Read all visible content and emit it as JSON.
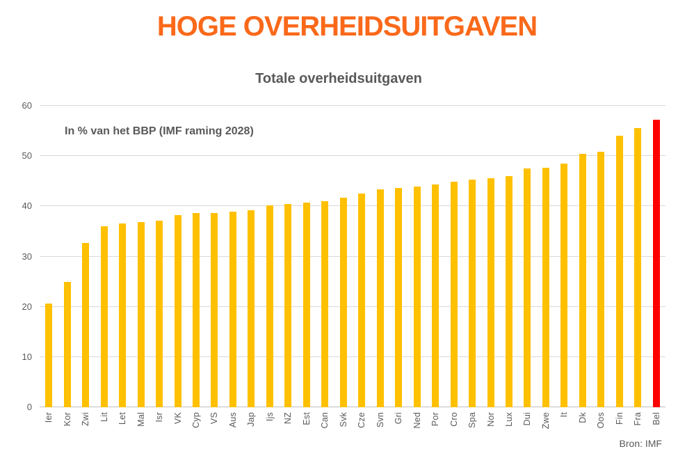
{
  "header": {
    "title": "HOGE OVERHEIDSUITGAVEN"
  },
  "footer": {
    "source": "Bron: IMF"
  },
  "colors": {
    "title": "#fa691a",
    "subtitle": "#595959",
    "axis_text": "#595959",
    "gridline": "#d9d9d9",
    "bar": "#ffc000",
    "highlight": "#ff0000"
  },
  "chart_data": {
    "type": "bar",
    "title": "Totale overheidsuitgaven",
    "annotation": "In % van het BBP (IMF raming 2028)",
    "xlabel": "",
    "ylabel": "",
    "ylim": [
      0,
      60
    ],
    "yticks": [
      0,
      10,
      20,
      30,
      40,
      50,
      60
    ],
    "grid": true,
    "legend": false,
    "categories": [
      "Ier",
      "Kor",
      "Zwi",
      "Lit",
      "Let",
      "Mal",
      "Isr",
      "VK",
      "Cyp",
      "VS",
      "Aus",
      "Jap",
      "Ijs",
      "NZ",
      "Est",
      "Can",
      "Svk",
      "Cze",
      "Svn",
      "Gri",
      "Ned",
      "Por",
      "Cro",
      "Spa",
      "Nor",
      "Lux",
      "Dui",
      "Zwe",
      "It",
      "Dk",
      "Oos",
      "Fin",
      "Fra",
      "Bel"
    ],
    "values": [
      20.6,
      24.9,
      32.7,
      36.0,
      36.6,
      36.9,
      37.1,
      38.2,
      38.6,
      38.7,
      39.0,
      39.2,
      40.2,
      40.4,
      40.8,
      41.0,
      41.7,
      42.6,
      43.4,
      43.6,
      43.9,
      44.4,
      44.9,
      45.3,
      45.6,
      46.0,
      47.5,
      47.7,
      48.5,
      50.5,
      50.8,
      54.0,
      55.5,
      57.2
    ],
    "highlight_category": "Bel",
    "bar_color": "#ffc000",
    "highlight_color": "#ff0000"
  }
}
